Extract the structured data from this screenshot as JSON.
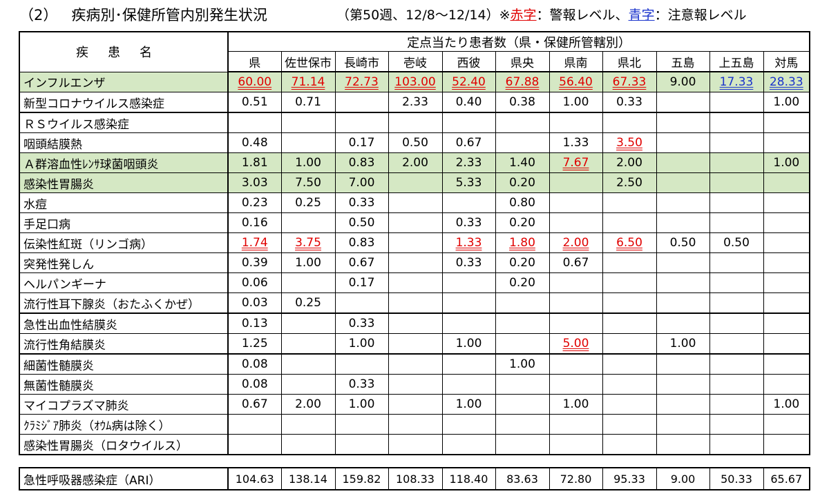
{
  "title": {
    "number": "（2）",
    "main": "疾病別･保健所管内別発生状況",
    "period": "（第50週、12/8～12/14）※",
    "red_word": "赤字",
    "red_desc": "：警報レベル、",
    "blue_word": "青字",
    "blue_desc": "：注意報レベル"
  },
  "colors": {
    "red": "#e00000",
    "blue": "#1a33cc",
    "highlight": "#d5e8c4"
  },
  "header": {
    "disease_label": "疾患名",
    "super_label": "定点当たり患者数（県・保健所管轄別）",
    "columns": [
      "県",
      "佐世保市",
      "長崎市",
      "壱岐",
      "西彼",
      "県央",
      "県南",
      "県北",
      "五島",
      "上五島",
      "対馬"
    ]
  },
  "rows": [
    {
      "name": "インフルエンザ",
      "values": [
        "60.00",
        "71.14",
        "72.73",
        "103.00",
        "52.40",
        "67.88",
        "56.40",
        "67.33",
        "9.00",
        "17.33",
        "28.33"
      ],
      "levels": [
        "r",
        "r",
        "r",
        "r",
        "r",
        "r",
        "r",
        "r",
        "",
        "b",
        "b"
      ],
      "highlight": true,
      "group_start": false
    },
    {
      "name": "新型コロナウイルス感染症",
      "values": [
        "0.51",
        "0.71",
        "",
        "2.33",
        "0.40",
        "0.38",
        "1.00",
        "0.33",
        "",
        "",
        "1.00"
      ],
      "levels": [
        "",
        "",
        "",
        "",
        "",
        "",
        "",
        "",
        "",
        "",
        ""
      ],
      "highlight": false,
      "group_start": false
    },
    {
      "name": "ＲＳウイルス感染症",
      "values": [
        "",
        "",
        "",
        "",
        "",
        "",
        "",
        "",
        "",
        "",
        ""
      ],
      "levels": [
        "",
        "",
        "",
        "",
        "",
        "",
        "",
        "",
        "",
        "",
        ""
      ],
      "highlight": false,
      "group_start": true
    },
    {
      "name": "咽頭結膜熱",
      "values": [
        "0.48",
        "",
        "0.17",
        "0.50",
        "0.67",
        "",
        "1.33",
        "3.50",
        "",
        "",
        ""
      ],
      "levels": [
        "",
        "",
        "",
        "",
        "",
        "",
        "",
        "r",
        "",
        "",
        ""
      ],
      "highlight": false,
      "group_start": false
    },
    {
      "name": "Ａ群溶血性ﾚﾝｻ球菌咽頭炎",
      "values": [
        "1.81",
        "1.00",
        "0.83",
        "2.00",
        "2.33",
        "1.40",
        "7.67",
        "2.00",
        "",
        "",
        "1.00"
      ],
      "levels": [
        "",
        "",
        "",
        "",
        "",
        "",
        "r",
        "",
        "",
        "",
        ""
      ],
      "highlight": true,
      "group_start": false
    },
    {
      "name": "感染性胃腸炎",
      "values": [
        "3.03",
        "7.50",
        "7.00",
        "",
        "5.33",
        "0.20",
        "",
        "2.50",
        "",
        "",
        ""
      ],
      "levels": [
        "",
        "",
        "",
        "",
        "",
        "",
        "",
        "",
        "",
        "",
        ""
      ],
      "highlight": true,
      "group_start": false
    },
    {
      "name": "水痘",
      "values": [
        "0.23",
        "0.25",
        "0.33",
        "",
        "",
        "0.80",
        "",
        "",
        "",
        "",
        ""
      ],
      "levels": [
        "",
        "",
        "",
        "",
        "",
        "",
        "",
        "",
        "",
        "",
        ""
      ],
      "highlight": false,
      "group_start": false
    },
    {
      "name": "手足口病",
      "values": [
        "0.16",
        "",
        "0.50",
        "",
        "0.33",
        "0.20",
        "",
        "",
        "",
        "",
        ""
      ],
      "levels": [
        "",
        "",
        "",
        "",
        "",
        "",
        "",
        "",
        "",
        "",
        ""
      ],
      "highlight": false,
      "group_start": false
    },
    {
      "name": "伝染性紅斑（リンゴ病）",
      "values": [
        "1.74",
        "3.75",
        "0.83",
        "",
        "1.33",
        "1.80",
        "2.00",
        "6.50",
        "0.50",
        "0.50",
        ""
      ],
      "levels": [
        "r",
        "r",
        "",
        "",
        "r",
        "r",
        "r",
        "r",
        "",
        "",
        ""
      ],
      "highlight": false,
      "group_start": false
    },
    {
      "name": "突発性発しん",
      "values": [
        "0.39",
        "1.00",
        "0.67",
        "",
        "0.33",
        "0.20",
        "0.67",
        "",
        "",
        "",
        ""
      ],
      "levels": [
        "",
        "",
        "",
        "",
        "",
        "",
        "",
        "",
        "",
        "",
        ""
      ],
      "highlight": false,
      "group_start": false
    },
    {
      "name": "ヘルパンギーナ",
      "values": [
        "0.06",
        "",
        "0.17",
        "",
        "",
        "0.20",
        "",
        "",
        "",
        "",
        ""
      ],
      "levels": [
        "",
        "",
        "",
        "",
        "",
        "",
        "",
        "",
        "",
        "",
        ""
      ],
      "highlight": false,
      "group_start": false
    },
    {
      "name": "流行性耳下腺炎（おたふくかぜ）",
      "values": [
        "0.03",
        "0.25",
        "",
        "",
        "",
        "",
        "",
        "",
        "",
        "",
        ""
      ],
      "levels": [
        "",
        "",
        "",
        "",
        "",
        "",
        "",
        "",
        "",
        "",
        ""
      ],
      "highlight": false,
      "group_start": false
    },
    {
      "name": "急性出血性結膜炎",
      "values": [
        "0.13",
        "",
        "0.33",
        "",
        "",
        "",
        "",
        "",
        "",
        "",
        ""
      ],
      "levels": [
        "",
        "",
        "",
        "",
        "",
        "",
        "",
        "",
        "",
        "",
        ""
      ],
      "highlight": false,
      "group_start": true
    },
    {
      "name": "流行性角結膜炎",
      "values": [
        "1.25",
        "",
        "1.00",
        "",
        "1.00",
        "",
        "5.00",
        "",
        "1.00",
        "",
        ""
      ],
      "levels": [
        "",
        "",
        "",
        "",
        "",
        "",
        "r",
        "",
        "",
        "",
        ""
      ],
      "highlight": false,
      "group_start": false
    },
    {
      "name": "細菌性髄膜炎",
      "values": [
        "0.08",
        "",
        "",
        "",
        "",
        "1.00",
        "",
        "",
        "",
        "",
        ""
      ],
      "levels": [
        "",
        "",
        "",
        "",
        "",
        "",
        "",
        "",
        "",
        "",
        ""
      ],
      "highlight": false,
      "group_start": true
    },
    {
      "name": "無菌性髄膜炎",
      "values": [
        "0.08",
        "",
        "0.33",
        "",
        "",
        "",
        "",
        "",
        "",
        "",
        ""
      ],
      "levels": [
        "",
        "",
        "",
        "",
        "",
        "",
        "",
        "",
        "",
        "",
        ""
      ],
      "highlight": false,
      "group_start": false
    },
    {
      "name": "マイコプラズマ肺炎",
      "values": [
        "0.67",
        "2.00",
        "1.00",
        "",
        "1.00",
        "",
        "1.00",
        "",
        "",
        "",
        "1.00"
      ],
      "levels": [
        "",
        "",
        "",
        "",
        "",
        "",
        "",
        "",
        "",
        "",
        ""
      ],
      "highlight": false,
      "group_start": false
    },
    {
      "name": "ｸﾗﾐｼﾞｱ肺炎（ｵｳﾑ病は除く）",
      "values": [
        "",
        "",
        "",
        "",
        "",
        "",
        "",
        "",
        "",
        "",
        ""
      ],
      "levels": [
        "",
        "",
        "",
        "",
        "",
        "",
        "",
        "",
        "",
        "",
        ""
      ],
      "highlight": false,
      "group_start": false
    },
    {
      "name": "感染性胃腸炎（ロタウイルス）",
      "values": [
        "",
        "",
        "",
        "",
        "",
        "",
        "",
        "",
        "",
        "",
        ""
      ],
      "levels": [
        "",
        "",
        "",
        "",
        "",
        "",
        "",
        "",
        "",
        "",
        ""
      ],
      "highlight": false,
      "group_start": false
    }
  ],
  "ari": {
    "name": "急性呼吸器感染症（ARI）",
    "values": [
      "104.63",
      "138.14",
      "159.82",
      "108.33",
      "118.40",
      "83.63",
      "72.80",
      "95.33",
      "9.00",
      "50.33",
      "65.67"
    ]
  }
}
